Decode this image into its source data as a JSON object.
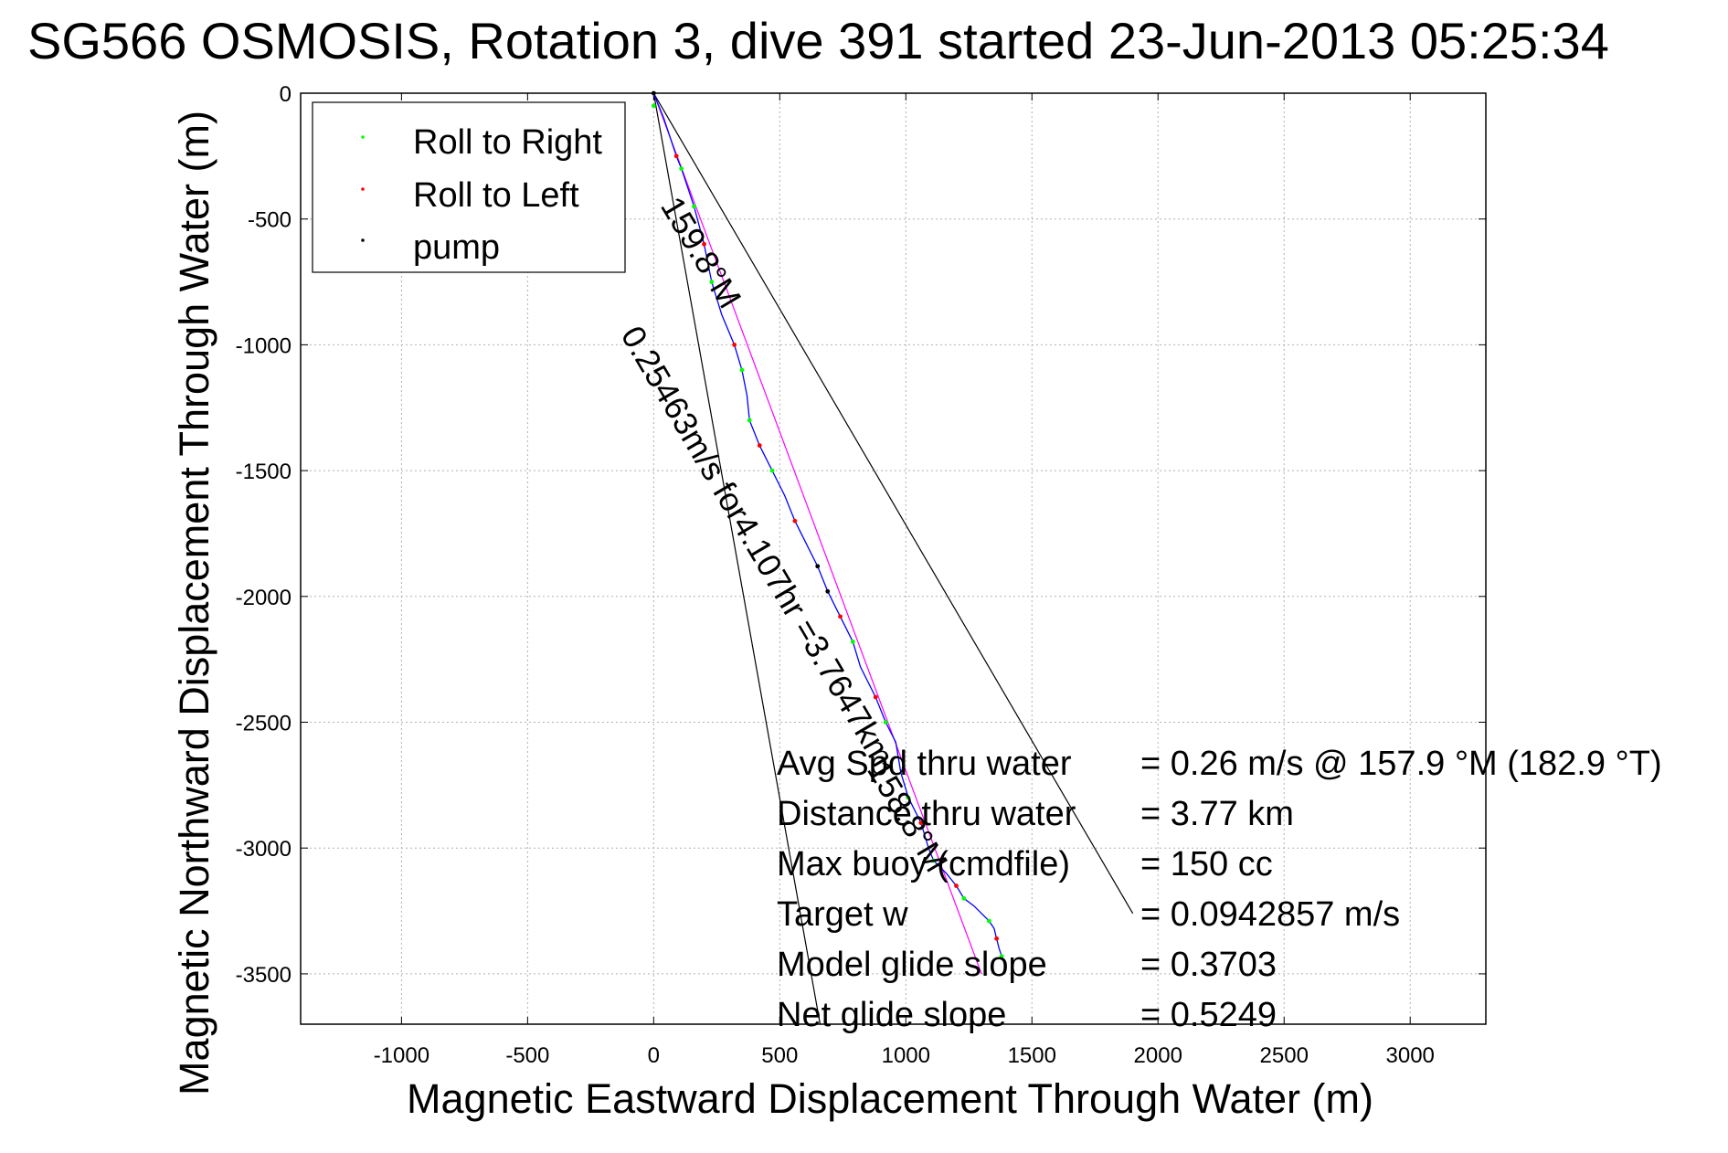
{
  "chart_data": {
    "type": "line",
    "title": "SG566 OSMOSIS, Rotation 3, dive 391 started 23-Jun-2013 05:25:34",
    "xlabel": "Magnetic Eastward Displacement Through Water (m)",
    "ylabel": "Magnetic Northward Displacement Through Water (m)",
    "xlim": [
      -1400,
      3300
    ],
    "ylim": [
      -3700,
      0
    ],
    "xticks": [
      -1000,
      -500,
      0,
      500,
      1000,
      1500,
      2000,
      2500,
      3000
    ],
    "yticks": [
      0,
      -500,
      -1000,
      -1500,
      -2000,
      -2500,
      -3000,
      -3500
    ],
    "xtick_labels": [
      "-1000",
      "-500",
      "0",
      "500",
      "1000",
      "1500",
      "2000",
      "2500",
      "3000"
    ],
    "ytick_labels": [
      "0",
      "-500",
      "-1000",
      "-1500",
      "-2000",
      "-2500",
      "-3000",
      "-3500"
    ],
    "grid": true,
    "legend": {
      "position": "top-left",
      "entries": [
        {
          "label": "Roll to Right",
          "color": "#00ff00"
        },
        {
          "label": "Roll to Left",
          "color": "#ff0000"
        },
        {
          "label": "pump",
          "color": "#000000"
        }
      ]
    },
    "track": {
      "color": "#0000ff",
      "x": [
        0,
        40,
        90,
        110,
        160,
        200,
        230,
        270,
        320,
        350,
        370,
        380,
        420,
        470,
        520,
        560,
        600,
        650,
        690,
        740,
        790,
        820,
        880,
        920,
        960,
        980,
        1010,
        1060,
        1090,
        1110,
        1160,
        1200,
        1230,
        1270,
        1300,
        1330,
        1350,
        1360,
        1370,
        1380
      ],
      "y": [
        0,
        -100,
        -250,
        -300,
        -450,
        -600,
        -750,
        -880,
        -1000,
        -1100,
        -1200,
        -1300,
        -1400,
        -1500,
        -1600,
        -1700,
        -1780,
        -1880,
        -1980,
        -2080,
        -2180,
        -2280,
        -2400,
        -2500,
        -2580,
        -2700,
        -2800,
        -2900,
        -3000,
        -3050,
        -3100,
        -3150,
        -3200,
        -3230,
        -3260,
        -3290,
        -3320,
        -3360,
        -3400,
        -3430
      ]
    },
    "roll_to_right_points": {
      "x": [
        0,
        110,
        160,
        230,
        350,
        380,
        470,
        650,
        790,
        920,
        1010,
        1110,
        1230,
        1330,
        1380
      ],
      "y": [
        -50,
        -300,
        -450,
        -750,
        -1100,
        -1300,
        -1500,
        -1880,
        -2180,
        -2500,
        -2800,
        -3050,
        -3200,
        -3290,
        -3430
      ]
    },
    "roll_to_left_points": {
      "x": [
        90,
        200,
        320,
        420,
        560,
        740,
        880,
        1060,
        1200,
        1360
      ],
      "y": [
        -250,
        -600,
        -1000,
        -1400,
        -1700,
        -2080,
        -2400,
        -2900,
        -3150,
        -3360
      ]
    },
    "pump_points": {
      "x": [
        0,
        650,
        690
      ],
      "y": [
        0,
        -1880,
        -1980
      ]
    },
    "bearing_lines": [
      {
        "label": "159.8°M",
        "x": [
          0,
          660
        ],
        "y": [
          0,
          -3700
        ],
        "color": "#000000"
      },
      {
        "label": "",
        "x": [
          0,
          1900
        ],
        "y": [
          0,
          -3260
        ],
        "color": "#000000"
      }
    ],
    "mean_track_line": {
      "label": "158.8°M",
      "x": [
        0,
        1300
      ],
      "y": [
        0,
        -3500
      ],
      "color": "#ff00ff"
    },
    "along_track_label": "0.25463m/s for4.107hr =3.7647km",
    "stats": [
      {
        "label": "Avg Spd thru water",
        "value": "=  0.26 m/s @ 157.9 °M (182.9 °T)"
      },
      {
        "label": "Distance thru water",
        "value": "=  3.77 km"
      },
      {
        "label": "Max buoy (cmdfile)",
        "value": "= 150 cc"
      },
      {
        "label": "Target w",
        "value": "= 0.0942857 m/s"
      },
      {
        "label": "Model glide slope",
        "value": "= 0.3703"
      },
      {
        "label": "Net glide slope",
        "value": "= 0.5249"
      }
    ]
  }
}
